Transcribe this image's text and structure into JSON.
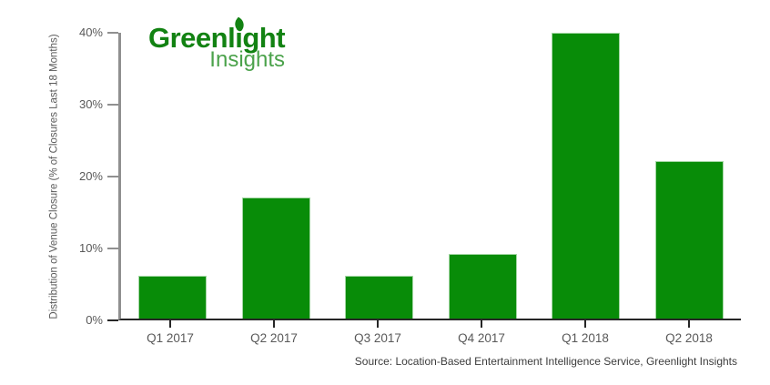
{
  "logo": {
    "primary": "Greenlight",
    "secondary": "Insights",
    "primary_color": "#128212",
    "secondary_color": "#4ba24b"
  },
  "chart_data": {
    "type": "bar",
    "categories": [
      "Q1 2017",
      "Q2 2017",
      "Q3 2017",
      "Q4 2017",
      "Q1 2018",
      "Q2 2018"
    ],
    "values": [
      6,
      17,
      6,
      9,
      40,
      22
    ],
    "unit": "%",
    "title": "",
    "xlabel": "",
    "ylabel": "Distribution of Venue Closure (% of Closures Last 18 Months)",
    "ylim": [
      0,
      40
    ],
    "yticks": [
      {
        "value": 0,
        "label": "0%"
      },
      {
        "value": 10,
        "label": "10%"
      },
      {
        "value": 20,
        "label": "20%"
      },
      {
        "value": 30,
        "label": "30%"
      },
      {
        "value": 40,
        "label": "40%"
      }
    ],
    "grid": false,
    "legend": "none",
    "bar_color": "#088c08"
  },
  "source_note": "Source: Location-Based Entertainment Intelligence Service, Greenlight Insights",
  "colors": {
    "background": "#ffffff",
    "axis_y": "#909090",
    "axis_x": "#262626",
    "tick_label": "#595959",
    "source_text": "#3d3d3d"
  }
}
